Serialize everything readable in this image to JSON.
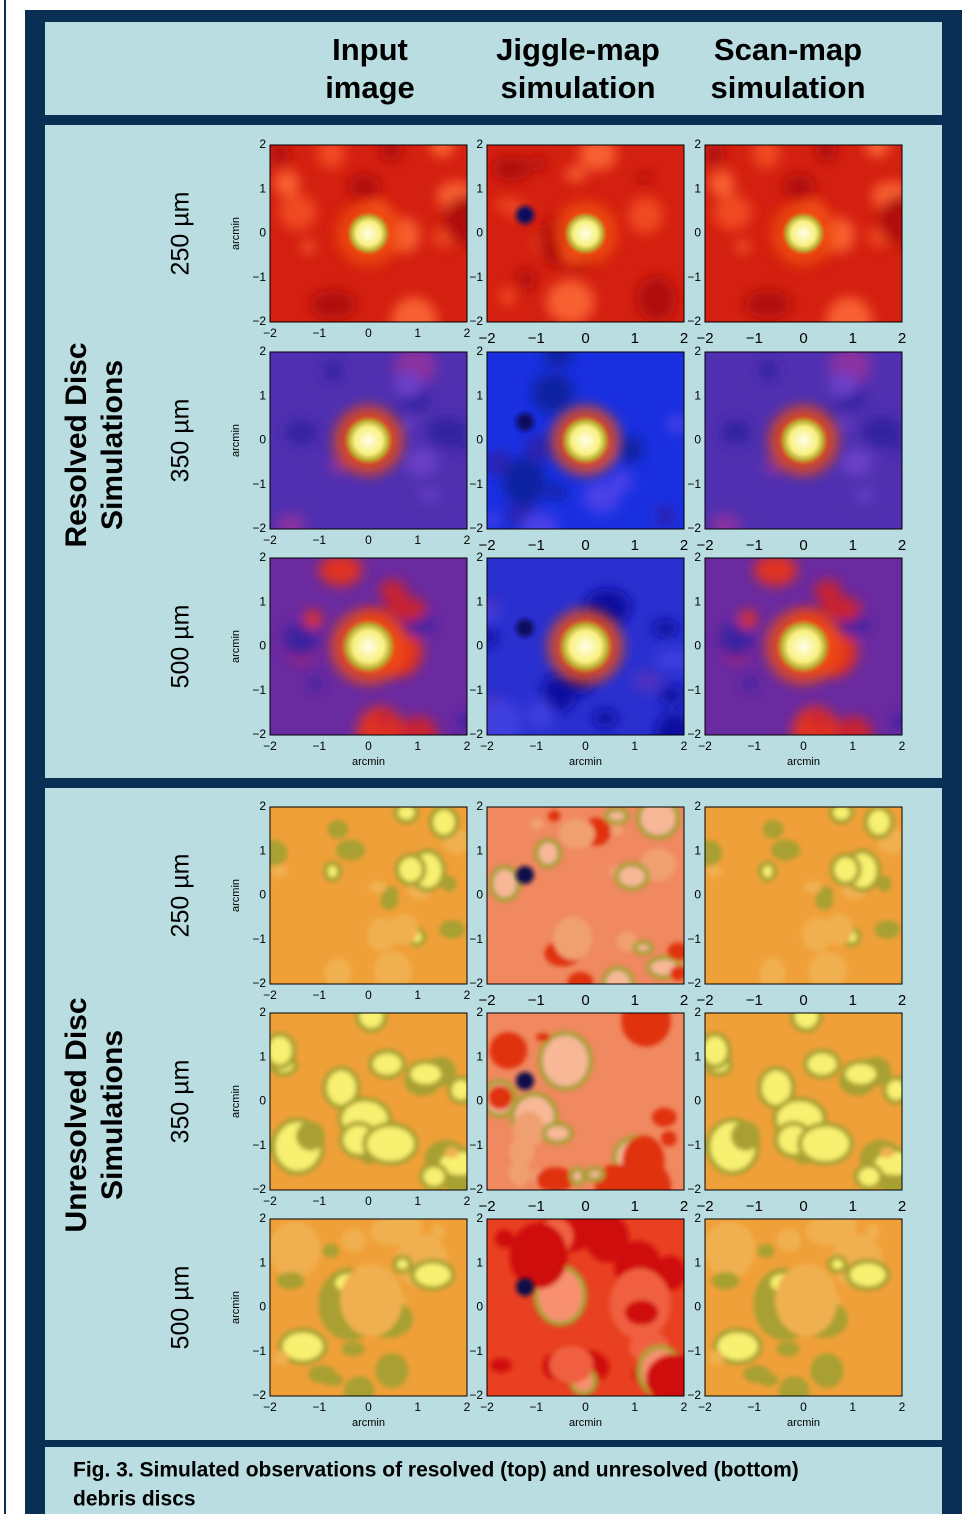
{
  "header": {
    "columns": [
      [
        "Input",
        "image"
      ],
      [
        "Jiggle-map",
        "simulation"
      ],
      [
        "Scan-map",
        "simulation"
      ]
    ]
  },
  "sections": [
    {
      "title": [
        "Resolved Disc",
        "Simulations"
      ],
      "rows": [
        "250 µm",
        "350 µm",
        "500 µm"
      ]
    },
    {
      "title": [
        "Unresolved Disc",
        "Simulations"
      ],
      "rows": [
        "250 µm",
        "350 µm",
        "500 µm"
      ]
    }
  ],
  "axes": {
    "ticks": [
      "−2",
      "−1",
      "0",
      "1",
      "2"
    ],
    "label": "arcmin"
  },
  "caption": [
    "Fig. 3. Simulated observations of resolved (top) and unresolved (bottom)",
    "debris discs"
  ]
}
